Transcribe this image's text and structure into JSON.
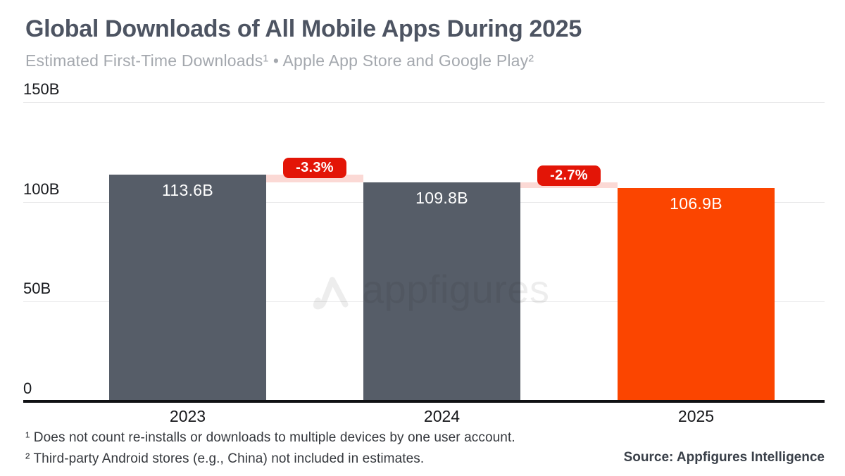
{
  "header": {
    "title": "Global Downloads of All Mobile Apps During 2025",
    "subtitle": "Estimated First-Time Downloads¹ • Apple App Store and Google Play²"
  },
  "chart_data": {
    "type": "bar",
    "title": "Global Downloads of All Mobile Apps During 2025",
    "subtitle": "Estimated First-Time Downloads • Apple App Store and Google Play",
    "categories": [
      "2023",
      "2024",
      "2025"
    ],
    "values": [
      113.6,
      109.8,
      106.9
    ],
    "value_labels": [
      "113.6B",
      "109.8B",
      "106.9B"
    ],
    "unit": "billions of first-time downloads",
    "bar_colors": [
      "#565d68",
      "#565d68",
      "#fb4500"
    ],
    "changes": [
      {
        "label": "-3.3%",
        "from": "2023",
        "to": "2024"
      },
      {
        "label": "-2.7%",
        "from": "2024",
        "to": "2025"
      }
    ],
    "yticks": [
      {
        "label": "150B",
        "value": 150
      },
      {
        "label": "100B",
        "value": 100
      },
      {
        "label": "50B",
        "value": 50
      },
      {
        "label": "0",
        "value": 0
      }
    ],
    "ylim": [
      0,
      150
    ],
    "grid": "horizontal",
    "badge_color": "#e31507",
    "band_color": "#fbd9d5"
  },
  "watermark": {
    "text": "appfigures"
  },
  "footnotes": [
    "¹ Does not count re-installs or downloads to multiple devices by one user account.",
    "² Third-party Android stores (e.g., China) not included in estimates."
  ],
  "source": "Source: Appfigures Intelligence"
}
